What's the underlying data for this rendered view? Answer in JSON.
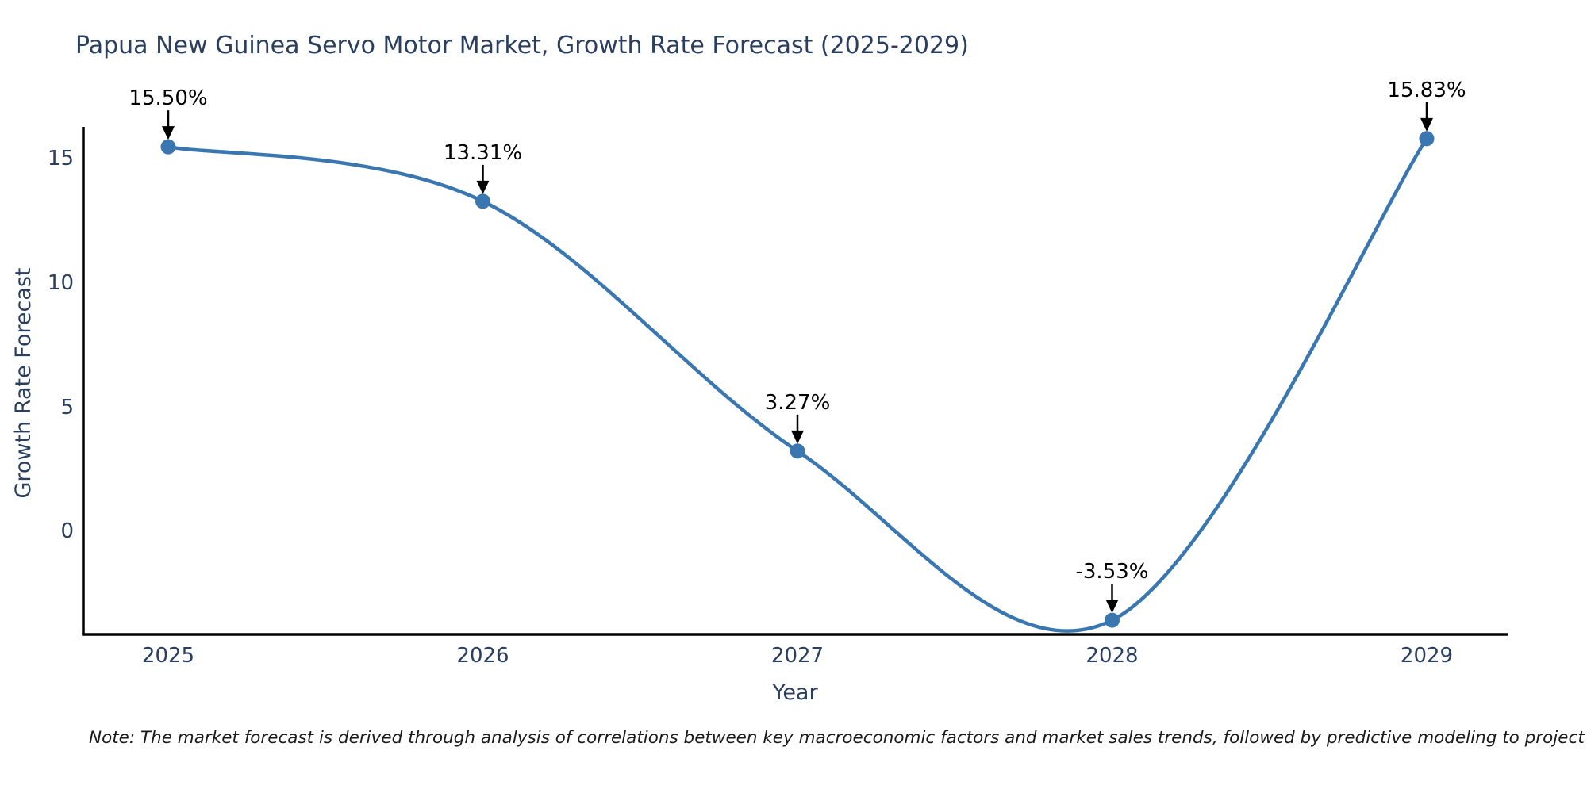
{
  "title": "Papua New Guinea Servo Motor Market, Growth Rate Forecast (2025-2029)",
  "note": "Note: The market forecast is derived through analysis of correlations between key macroeconomic factors and market sales trends, followed by predictive modeling to project future sales.",
  "chart_data": {
    "type": "line",
    "title": "Papua New Guinea Servo Motor Market, Growth Rate Forecast (2025-2029)",
    "x": [
      2025,
      2026,
      2027,
      2028,
      2029
    ],
    "values": [
      15.5,
      13.31,
      3.27,
      -3.53,
      15.83
    ],
    "point_labels": [
      "15.50%",
      "13.31%",
      "3.27%",
      "-3.53%",
      "15.83%"
    ],
    "xlabel": "Year",
    "ylabel": "Growth Rate Forecast",
    "xtick_labels": [
      "2025",
      "2026",
      "2027",
      "2028",
      "2029"
    ],
    "ytick_values": [
      0,
      5,
      10,
      15
    ],
    "ytick_labels": [
      "0",
      "5",
      "10",
      "15"
    ],
    "ylim": [
      -4.1,
      16.3
    ],
    "line_shape": "spline",
    "grid": false,
    "legend": "none",
    "colors": {
      "line": "#3a76b0",
      "marker": "#3a76b0",
      "axis_line": "#000000",
      "tick_text": "#2a3f5f",
      "title_text": "#2a3f5f",
      "annotation_text": "#000000",
      "arrow": "#000000",
      "background": "#ffffff"
    }
  }
}
